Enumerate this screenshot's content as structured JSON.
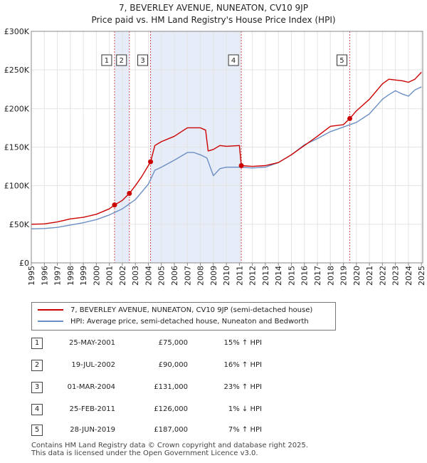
{
  "title_line1": "7, BEVERLEY AVENUE, NUNEATON, CV10 9JP",
  "title_line2": "Price paid vs. HM Land Registry's House Price Index (HPI)",
  "colors": {
    "property": "#cc0000",
    "hpi": "#6b8fc4",
    "band": "#e6ecf8",
    "marker_line": "#cc0000"
  },
  "chart_data": {
    "type": "line",
    "y_ticks": [
      "£0",
      "£50K",
      "£100K",
      "£150K",
      "£200K",
      "£250K",
      "£300K"
    ],
    "y_tick_values": [
      0,
      50000,
      100000,
      150000,
      200000,
      250000,
      300000
    ],
    "ylim": [
      0,
      300000
    ],
    "x_ticks": [
      "1995",
      "1996",
      "1997",
      "1998",
      "1999",
      "2000",
      "2001",
      "2002",
      "2003",
      "2004",
      "2005",
      "2006",
      "2007",
      "2008",
      "2009",
      "2010",
      "2011",
      "2012",
      "2013",
      "2014",
      "2015",
      "2016",
      "2017",
      "2018",
      "2019",
      "2020",
      "2021",
      "2022",
      "2023",
      "2024",
      "2025"
    ],
    "xlim": [
      1995.0,
      2025.1
    ],
    "series": [
      {
        "name": "7, BEVERLEY AVENUE, NUNEATON, CV10 9JP (semi-detached house)",
        "key": "property",
        "x": [
          1995.0,
          1996.0,
          1997.0,
          1998.0,
          1999.0,
          2000.0,
          2001.0,
          2001.4,
          2002.0,
          2002.54,
          2003.0,
          2003.5,
          2004.17,
          2004.5,
          2005.0,
          2006.0,
          2007.0,
          2007.5,
          2008.0,
          2008.4,
          2008.6,
          2009.0,
          2009.5,
          2010.0,
          2011.0,
          2011.15,
          2012.0,
          2013.0,
          2014.0,
          2015.0,
          2016.0,
          2017.0,
          2018.0,
          2019.0,
          2019.49,
          2020.0,
          2021.0,
          2022.0,
          2022.5,
          2023.0,
          2023.5,
          2024.0,
          2024.5,
          2025.0
        ],
        "y": [
          50000,
          50500,
          53000,
          57000,
          59000,
          63000,
          70000,
          75000,
          81000,
          90000,
          100000,
          112000,
          131000,
          152000,
          157000,
          164000,
          175000,
          175000,
          175000,
          172000,
          145000,
          147000,
          152000,
          151000,
          152000,
          126000,
          125000,
          126000,
          130000,
          140000,
          152000,
          164000,
          177000,
          179000,
          187000,
          197000,
          212000,
          232000,
          238000,
          237000,
          236000,
          234000,
          238000,
          247000
        ]
      },
      {
        "name": "HPI: Average price, semi-detached house, Nuneaton and Bedworth",
        "key": "hpi",
        "x": [
          1995.0,
          1996.0,
          1997.0,
          1998.0,
          1999.0,
          2000.0,
          2001.0,
          2002.0,
          2003.0,
          2004.0,
          2004.5,
          2005.0,
          2006.0,
          2007.0,
          2007.5,
          2008.0,
          2008.5,
          2009.0,
          2009.5,
          2010.0,
          2011.0,
          2012.0,
          2013.0,
          2014.0,
          2015.0,
          2016.0,
          2017.0,
          2018.0,
          2019.0,
          2020.0,
          2021.0,
          2022.0,
          2022.5,
          2023.0,
          2023.5,
          2024.0,
          2024.5,
          2025.0
        ],
        "y": [
          44000,
          44500,
          46000,
          49000,
          52000,
          56000,
          62000,
          70000,
          82000,
          102000,
          120000,
          124000,
          133000,
          143000,
          143000,
          140000,
          136000,
          113000,
          122000,
          124000,
          124000,
          123000,
          124000,
          130000,
          140000,
          153000,
          161000,
          170000,
          176000,
          182000,
          193000,
          212000,
          218000,
          223000,
          219000,
          216000,
          224000,
          228000
        ]
      }
    ],
    "bands": [
      [
        2001.4,
        2002.54
      ],
      [
        2004.17,
        2011.15
      ]
    ],
    "transactions": [
      {
        "num": "1",
        "x": 2001.4,
        "y": 75000,
        "date": "25-MAY-2001",
        "price": "£75,000",
        "hpi": "15% ↑ HPI"
      },
      {
        "num": "2",
        "x": 2002.54,
        "y": 90000,
        "date": "19-JUL-2002",
        "price": "£90,000",
        "hpi": "16% ↑ HPI"
      },
      {
        "num": "3",
        "x": 2004.17,
        "y": 131000,
        "date": "01-MAR-2004",
        "price": "£131,000",
        "hpi": "23% ↑ HPI"
      },
      {
        "num": "4",
        "x": 2011.15,
        "y": 126000,
        "date": "25-FEB-2011",
        "price": "£126,000",
        "hpi": "1% ↓ HPI"
      },
      {
        "num": "5",
        "x": 2019.49,
        "y": 187000,
        "date": "28-JUN-2019",
        "price": "£187,000",
        "hpi": "7% ↑ HPI"
      }
    ]
  },
  "legend": {
    "property_label": "7, BEVERLEY AVENUE, NUNEATON, CV10 9JP (semi-detached house)",
    "hpi_label": "HPI: Average price, semi-detached house, Nuneaton and Bedworth"
  },
  "footer": {
    "line1": "Contains HM Land Registry data © Crown copyright and database right 2025.",
    "line2": "This data is licensed under the Open Government Licence v3.0."
  }
}
